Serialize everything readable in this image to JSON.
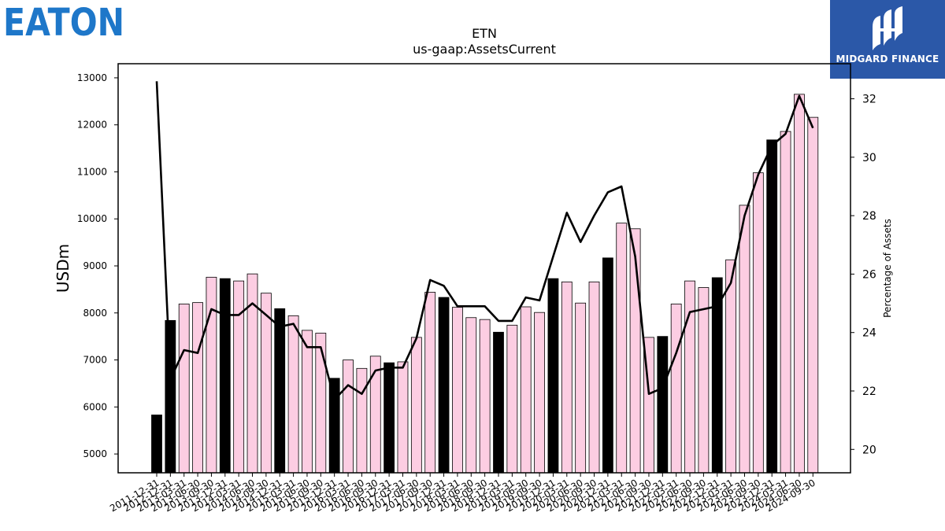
{
  "logos": {
    "left_text": "EATON",
    "left_color": "#1e77c9",
    "right_text": "MIDGARD FINANCE",
    "right_bg": "#2b58a8"
  },
  "chart_data": {
    "type": "bar",
    "title": "ETN",
    "subtitle": "us-gaap:AssetsCurrent",
    "ylabel": "USDm",
    "y2label": "Percentage of Assets",
    "ylim": [
      4600,
      13300
    ],
    "y2lim": [
      19.2,
      33.2
    ],
    "yticks": [
      5000,
      6000,
      7000,
      8000,
      9000,
      10000,
      11000,
      12000,
      13000
    ],
    "y2ticks": [
      20,
      22,
      24,
      26,
      28,
      30,
      32
    ],
    "categories": [
      "2011-12-31",
      "2012-12-31",
      "2013-03-31",
      "2013-06-30",
      "2013-09-30",
      "2013-12-31",
      "2014-03-31",
      "2014-06-30",
      "2014-09-30",
      "2014-12-31",
      "2015-03-31",
      "2015-06-30",
      "2015-09-30",
      "2015-12-31",
      "2016-03-31",
      "2016-06-30",
      "2016-09-30",
      "2016-12-31",
      "2017-03-31",
      "2017-06-30",
      "2017-09-30",
      "2017-12-31",
      "2018-03-31",
      "2018-06-30",
      "2018-09-30",
      "2018-12-31",
      "2019-03-31",
      "2019-06-30",
      "2019-09-30",
      "2019-12-31",
      "2020-03-31",
      "2020-06-30",
      "2020-09-30",
      "2020-12-31",
      "2021-03-31",
      "2021-06-30",
      "2021-09-30",
      "2021-12-31",
      "2022-03-31",
      "2022-06-30",
      "2022-09-30",
      "2022-12-31",
      "2023-03-31",
      "2023-06-30",
      "2023-09-30",
      "2023-12-31",
      "2024-03-31",
      "2024-06-30",
      "2024-09-30"
    ],
    "bar_series": {
      "name": "AssetsCurrent",
      "values": [
        5830,
        7840,
        8190,
        8220,
        8760,
        8730,
        8680,
        8830,
        8420,
        8090,
        7940,
        7630,
        7570,
        6610,
        7000,
        6820,
        7080,
        6940,
        6960,
        7480,
        8440,
        8330,
        8120,
        7900,
        7860,
        7590,
        7740,
        8130,
        8010,
        8730,
        8660,
        8210,
        8660,
        9170,
        9910,
        9790,
        7480,
        7500,
        8190,
        8680,
        8540,
        8750,
        9130,
        10290,
        10980,
        11680,
        11860,
        12650,
        12160
      ],
      "annual_flags": [
        1,
        1,
        0,
        0,
        0,
        1,
        0,
        0,
        0,
        1,
        0,
        0,
        0,
        1,
        0,
        0,
        0,
        1,
        0,
        0,
        0,
        1,
        0,
        0,
        0,
        1,
        0,
        0,
        0,
        1,
        0,
        0,
        0,
        1,
        0,
        0,
        0,
        1,
        0,
        0,
        0,
        1,
        0,
        0,
        0,
        1,
        0,
        0,
        0
      ],
      "annual_color": "#000000",
      "quarterly_color": "#fccde2"
    },
    "line_series": {
      "name": "Percentage of Assets",
      "values": [
        32.6,
        22.4,
        23.4,
        23.3,
        24.8,
        24.6,
        24.6,
        25.0,
        24.6,
        24.2,
        24.3,
        23.5,
        23.5,
        21.7,
        22.2,
        21.9,
        22.7,
        22.8,
        22.8,
        23.8,
        25.8,
        25.6,
        24.9,
        24.9,
        24.9,
        24.4,
        24.4,
        25.2,
        25.1,
        26.6,
        28.1,
        27.1,
        28.0,
        28.8,
        29.0,
        26.6,
        21.9,
        22.1,
        23.3,
        24.7,
        24.8,
        24.9,
        25.7,
        28.0,
        29.4,
        30.4,
        30.8,
        32.1,
        31.0
      ],
      "color": "#000000"
    }
  }
}
